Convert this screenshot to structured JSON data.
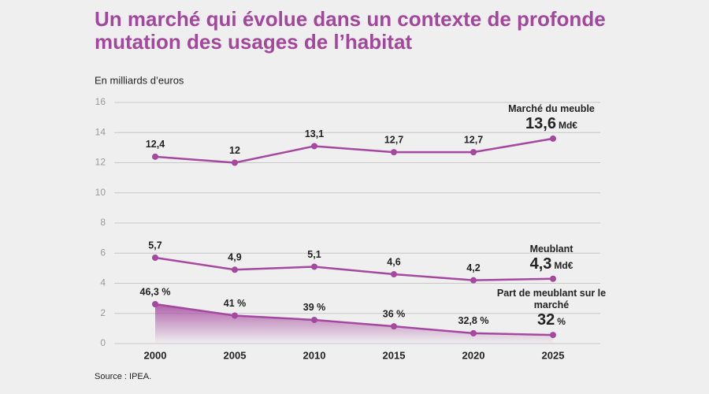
{
  "chart_data": {
    "type": "line",
    "title": "Un marché qui évolue dans un contexte de profonde mutation des usages de l’habitat",
    "y_label": "En milliards d’euros",
    "source": "Source : IPEA.",
    "categories": [
      "2000",
      "2005",
      "2010",
      "2015",
      "2020",
      "2025"
    ],
    "ylim": [
      0,
      16
    ],
    "yticks": [
      0,
      2,
      4,
      6,
      8,
      10,
      12,
      14,
      16
    ],
    "y2lim": [
      28,
      140
    ],
    "grid": true,
    "series": [
      {
        "name": "Marché du meuble",
        "color": "#a5489f",
        "values": [
          12.4,
          12,
          13.1,
          12.7,
          12.7,
          13.6
        ],
        "value_labels": [
          "12,4",
          "12",
          "13,1",
          "12,7",
          "12,7",
          "13,6"
        ],
        "unit": "Md€"
      },
      {
        "name": "Meublant",
        "color": "#a5489f",
        "values": [
          5.7,
          4.9,
          5.1,
          4.6,
          4.2,
          4.3
        ],
        "value_labels": [
          "5,7",
          "4,9",
          "5,1",
          "4,6",
          "4,2",
          "4,3"
        ],
        "unit": "Md€"
      },
      {
        "name": "Part de meublant sur le marché",
        "color": "#a5489f",
        "axis": "y2",
        "area": true,
        "values": [
          46.3,
          41,
          39,
          36,
          32.8,
          32
        ],
        "value_labels": [
          "46,3 %",
          "41 %",
          "39 %",
          "36 %",
          "32,8 %",
          "32"
        ],
        "unit": "%"
      }
    ]
  }
}
